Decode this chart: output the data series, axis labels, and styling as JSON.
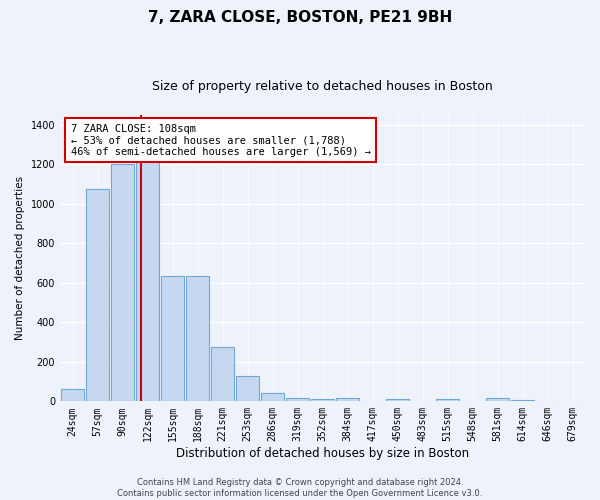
{
  "title": "7, ZARA CLOSE, BOSTON, PE21 9BH",
  "subtitle": "Size of property relative to detached houses in Boston",
  "xlabel": "Distribution of detached houses by size in Boston",
  "ylabel": "Number of detached properties",
  "categories": [
    "24sqm",
    "57sqm",
    "90sqm",
    "122sqm",
    "155sqm",
    "188sqm",
    "221sqm",
    "253sqm",
    "286sqm",
    "319sqm",
    "352sqm",
    "384sqm",
    "417sqm",
    "450sqm",
    "483sqm",
    "515sqm",
    "548sqm",
    "581sqm",
    "614sqm",
    "646sqm",
    "679sqm"
  ],
  "values": [
    60,
    1075,
    1200,
    1250,
    635,
    635,
    275,
    130,
    40,
    18,
    12,
    18,
    0,
    12,
    0,
    10,
    0,
    18,
    5,
    0,
    0
  ],
  "bar_color": "#c5d8f0",
  "bar_edge_color": "#6fa8d4",
  "bar_linewidth": 0.8,
  "vline_color": "#cc0000",
  "vline_x": 2.75,
  "annotation_text": "7 ZARA CLOSE: 108sqm\n← 53% of detached houses are smaller (1,788)\n46% of semi-detached houses are larger (1,569) →",
  "annotation_box_color": "#ffffff",
  "annotation_box_edge": "#cc0000",
  "ylim": [
    0,
    1450
  ],
  "yticks": [
    0,
    200,
    400,
    600,
    800,
    1000,
    1200,
    1400
  ],
  "background_color": "#eef2fa",
  "grid_color": "#ffffff",
  "footer": "Contains HM Land Registry data © Crown copyright and database right 2024.\nContains public sector information licensed under the Open Government Licence v3.0.",
  "title_fontsize": 11,
  "subtitle_fontsize": 9,
  "xlabel_fontsize": 8.5,
  "ylabel_fontsize": 7.5,
  "tick_fontsize": 7,
  "annotation_fontsize": 7.5,
  "footer_fontsize": 6
}
